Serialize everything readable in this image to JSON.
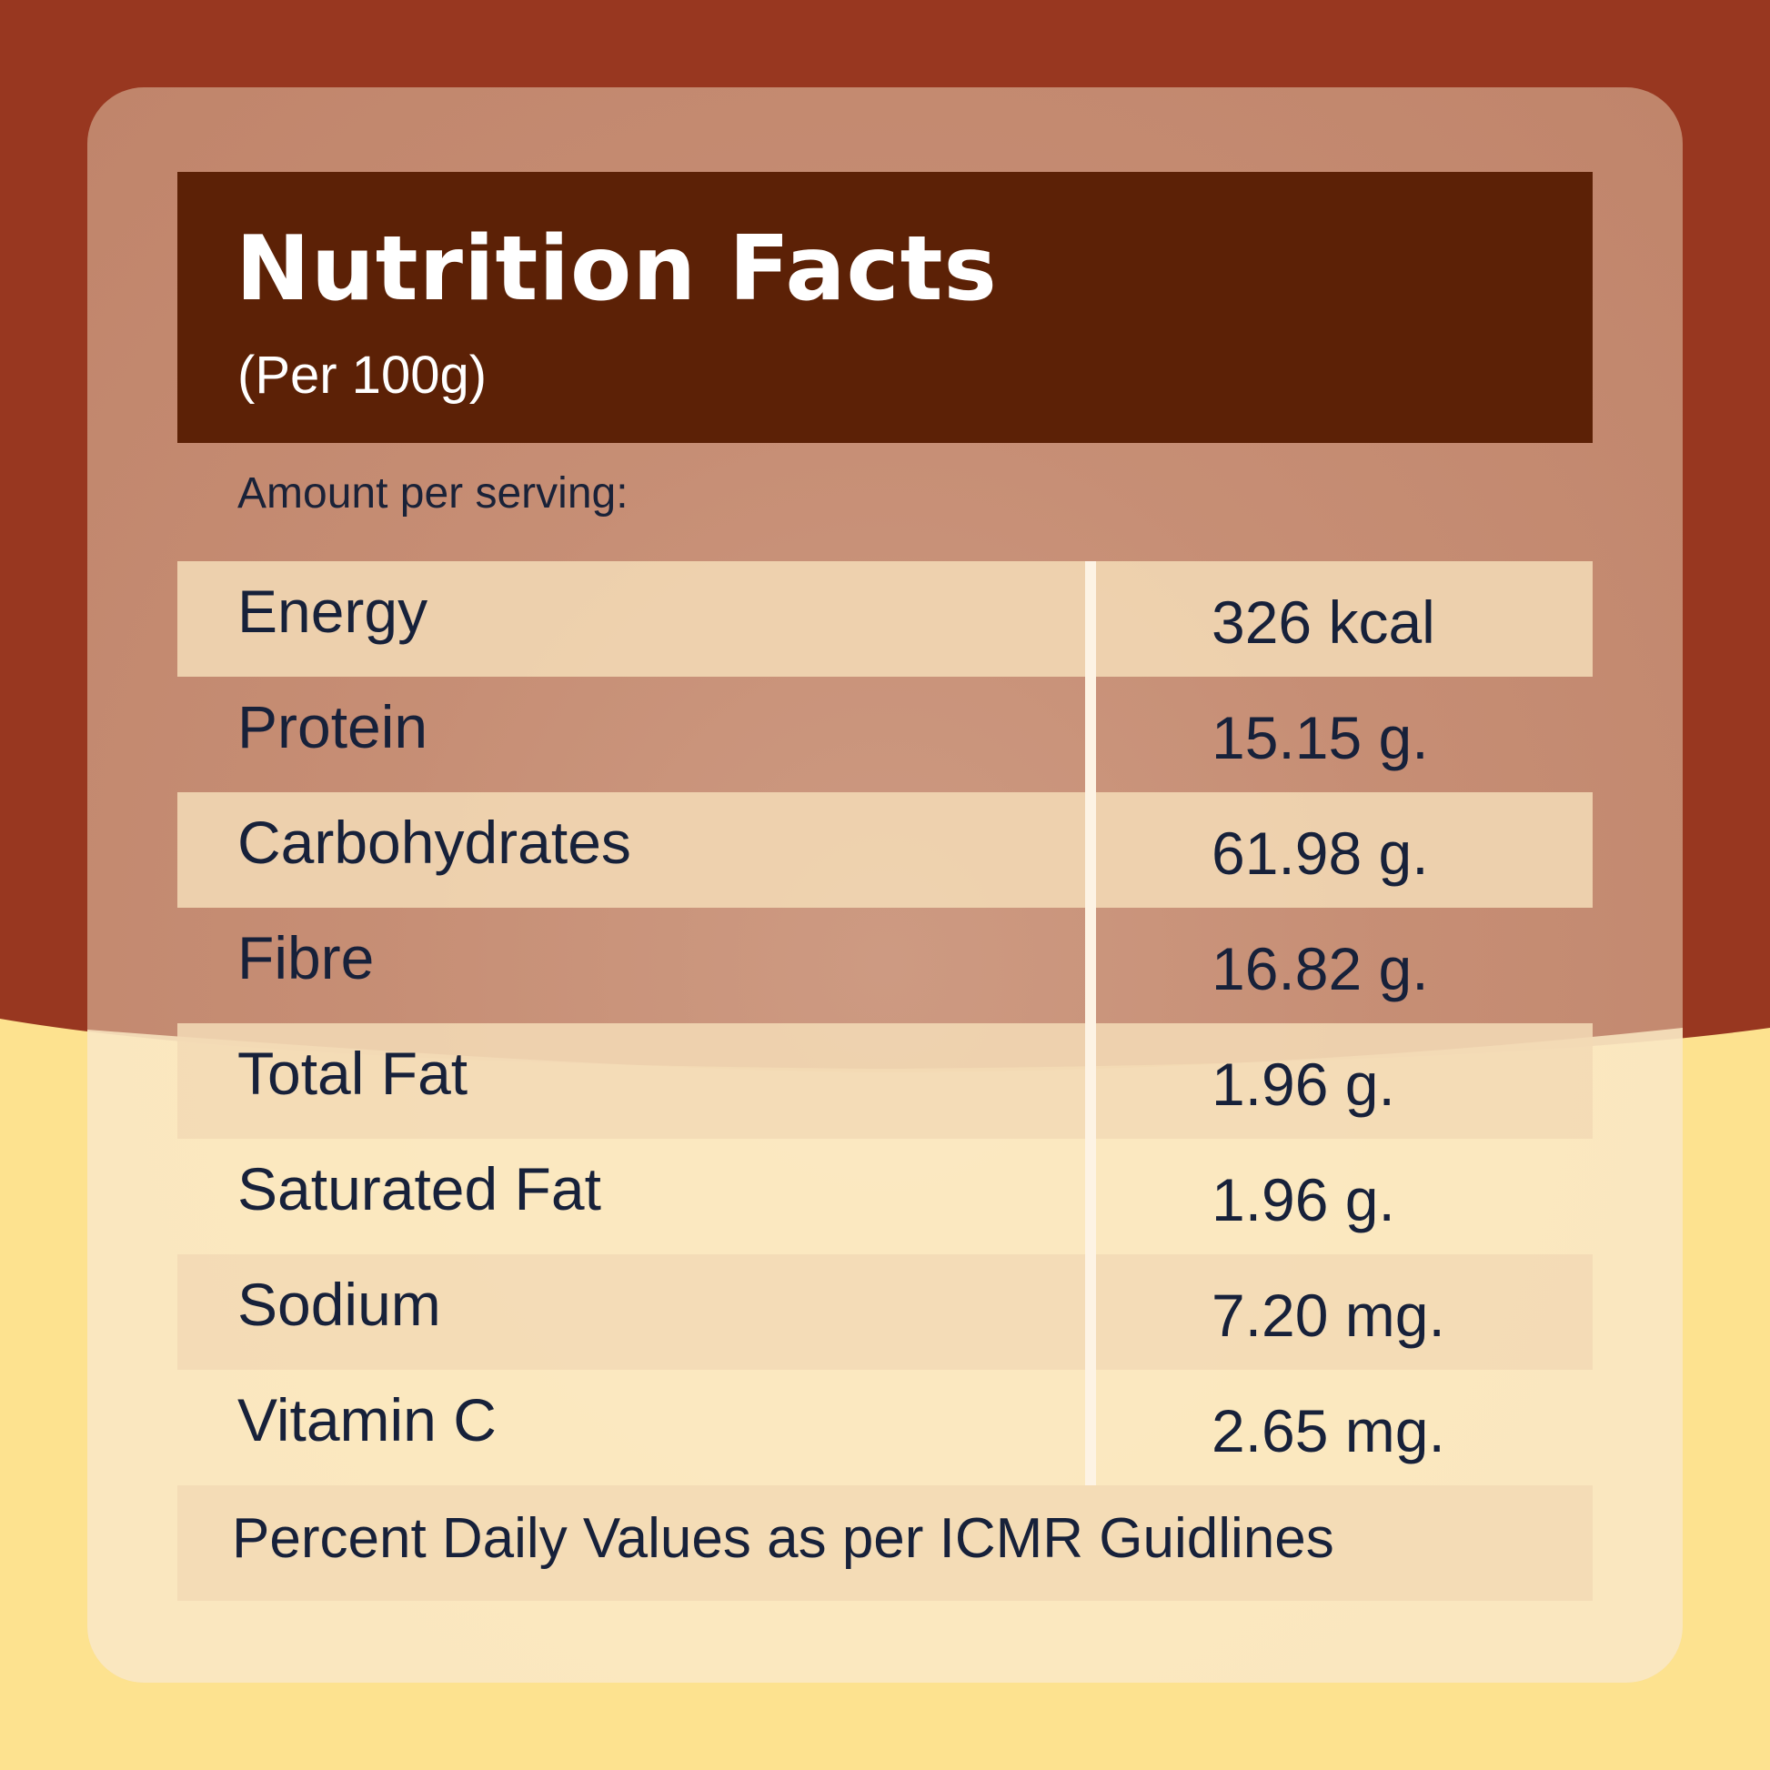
{
  "colors": {
    "background_top": "#983720",
    "background_bottom": "#fde28f",
    "header_bg": "#5c2106",
    "row_shade": "#f3dab5",
    "text_dark": "#17213a",
    "text_light": "#ffffff"
  },
  "header": {
    "title": "Nutrition Facts",
    "subtitle": "(Per 100g)"
  },
  "serving_label": "Amount per serving:",
  "nutrients": [
    {
      "name": "Energy",
      "value": "326 kcal"
    },
    {
      "name": "Protein",
      "value": "15.15 g."
    },
    {
      "name": "Carbohydrates",
      "value": "61.98 g."
    },
    {
      "name": "Fibre",
      "value": "16.82 g."
    },
    {
      "name": "Total Fat",
      "value": "1.96 g."
    },
    {
      "name": "Saturated Fat",
      "value": "1.96 g."
    },
    {
      "name": "Sodium",
      "value": "7.20 mg."
    },
    {
      "name": "Vitamin C",
      "value": "2.65 mg."
    }
  ],
  "footer": {
    "note": "Percent Daily Values as per ICMR Guidlines"
  }
}
